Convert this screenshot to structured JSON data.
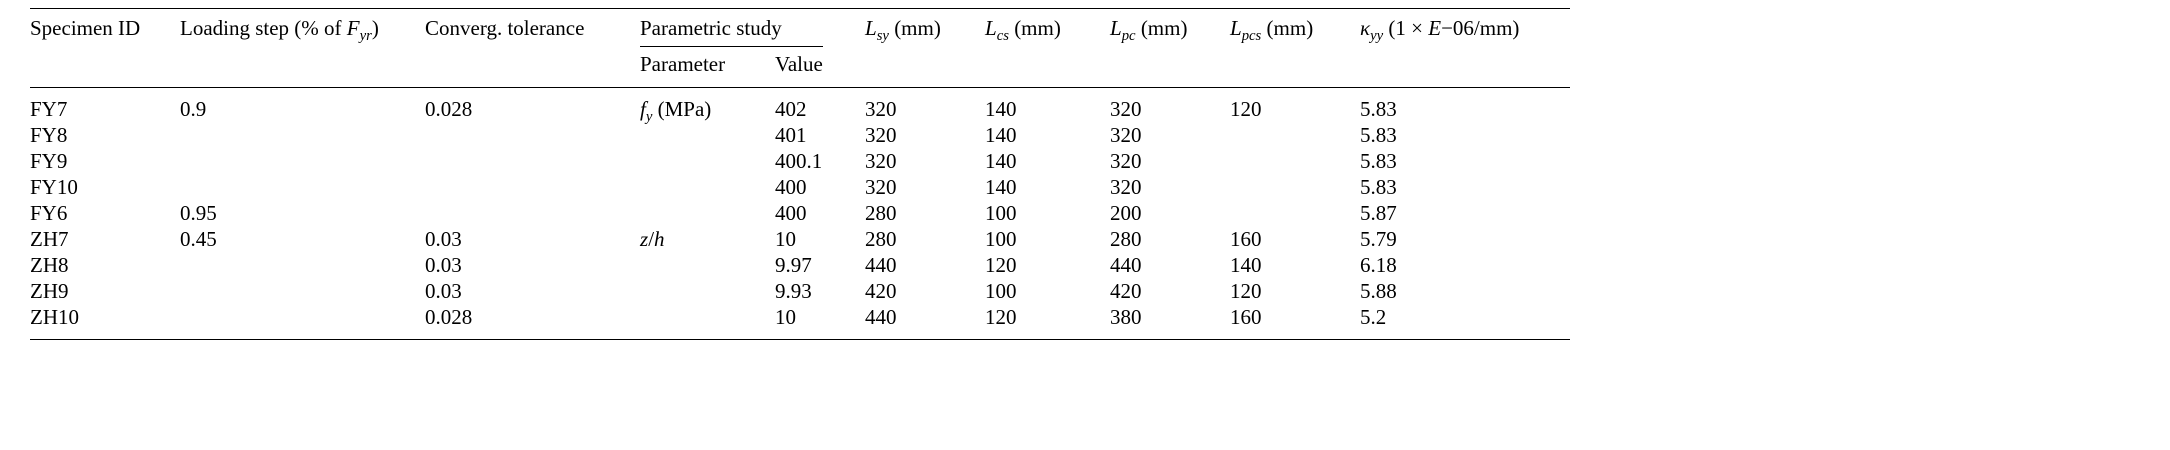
{
  "table": {
    "headers": {
      "specimen_id": "Specimen ID",
      "loading_step": "Loading step (% of <i>F<sub>yr</sub></i>)",
      "tolerance": "Converg. tolerance",
      "parametric_study": "Parametric study",
      "parameter": "Parameter",
      "value": "Value",
      "lsy": "<i>L<sub>sy</sub></i> (mm)",
      "lcs": "<i>L<sub>cs</sub></i> (mm)",
      "lpc": "<i>L<sub>pc</sub></i> (mm)",
      "lpcs": "<i>L<sub>pcs</sub></i> (mm)",
      "kyy": "<i>&#954;<sub>yy</sub></i> (1 &#215; <i>E</i>&#8722;06/mm)"
    },
    "rows": [
      [
        "FY7",
        "0.9",
        "0.028",
        "<i>f<sub>y</sub></i> (MPa)",
        "402",
        "320",
        "140",
        "320",
        "120",
        "5.83"
      ],
      [
        "FY8",
        "",
        "",
        "",
        "401",
        "320",
        "140",
        "320",
        "",
        "5.83"
      ],
      [
        "FY9",
        "",
        "",
        "",
        "400.1",
        "320",
        "140",
        "320",
        "",
        "5.83"
      ],
      [
        "FY10",
        "",
        "",
        "",
        "400",
        "320",
        "140",
        "320",
        "",
        "5.83"
      ],
      [
        "FY6",
        "0.95",
        "",
        "",
        "400",
        "280",
        "100",
        "200",
        "",
        "5.87"
      ],
      [
        "ZH7",
        "0.45",
        "0.03",
        "<i>z</i>/<i>h</i>",
        "10",
        "280",
        "100",
        "280",
        "160",
        "5.79"
      ],
      [
        "ZH8",
        "",
        "0.03",
        "",
        "9.97",
        "440",
        "120",
        "440",
        "140",
        "6.18"
      ],
      [
        "ZH9",
        "",
        "0.03",
        "",
        "9.93",
        "420",
        "100",
        "420",
        "120",
        "5.88"
      ],
      [
        "ZH10",
        "",
        "0.028",
        "",
        "10",
        "440",
        "120",
        "380",
        "160",
        "5.2"
      ]
    ]
  }
}
